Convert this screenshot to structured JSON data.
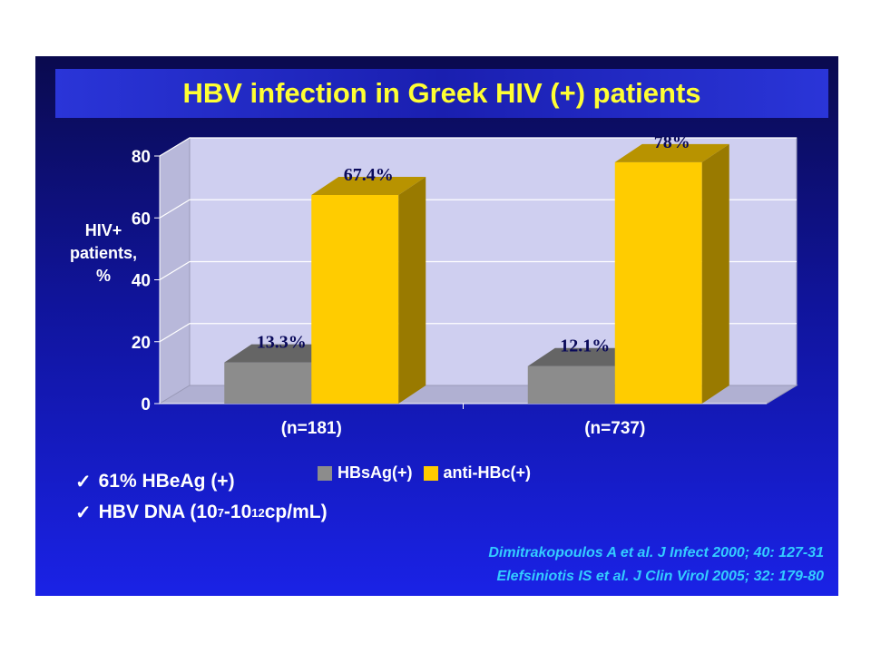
{
  "title": "HBV infection in Greek HIV (+) patients",
  "y_axis_label_lines": [
    "HIV+",
    "patients,",
    "%"
  ],
  "legend": [
    {
      "label": "HBsAg(+)",
      "color": "#8c8c8c"
    },
    {
      "label": "anti-HBc(+)",
      "color": "#ffcc00"
    }
  ],
  "bullets": {
    "check": "✓",
    "b1": "61% HBeAg (+)",
    "b2_pre": "HBV DNA (10",
    "b2_sup1": "7",
    "b2_mid": "-10",
    "b2_sup2": "12",
    "b2_post": " cp/mL)"
  },
  "references": [
    "Dimitrakopoulos A et al. J Infect 2000; 40: 127-31",
    "Elefsiniotis IS et al. J Clin Virol 2005; 32: 179-80"
  ],
  "colors": {
    "hbsag": "#8c8c8c",
    "antihbc": "#ffcc00",
    "plot_back": "#cfcff0",
    "title_text": "#ffff33",
    "reference_text": "#33ccff"
  },
  "chart_data": {
    "type": "bar",
    "categories": [
      "(n=181)",
      "(n=737)"
    ],
    "series": [
      {
        "name": "HBsAg(+)",
        "values": [
          13.3,
          12.1
        ],
        "labels": [
          "13.3%",
          "12.1%"
        ]
      },
      {
        "name": "anti-HBc(+)",
        "values": [
          67.4,
          78
        ],
        "labels": [
          "67.4%",
          "78%"
        ]
      }
    ],
    "ylim": [
      0,
      80
    ],
    "yticks": [
      0,
      20,
      40,
      60,
      80
    ],
    "ylabel": "HIV+ patients, %",
    "grid": true,
    "legend": "bottom"
  }
}
